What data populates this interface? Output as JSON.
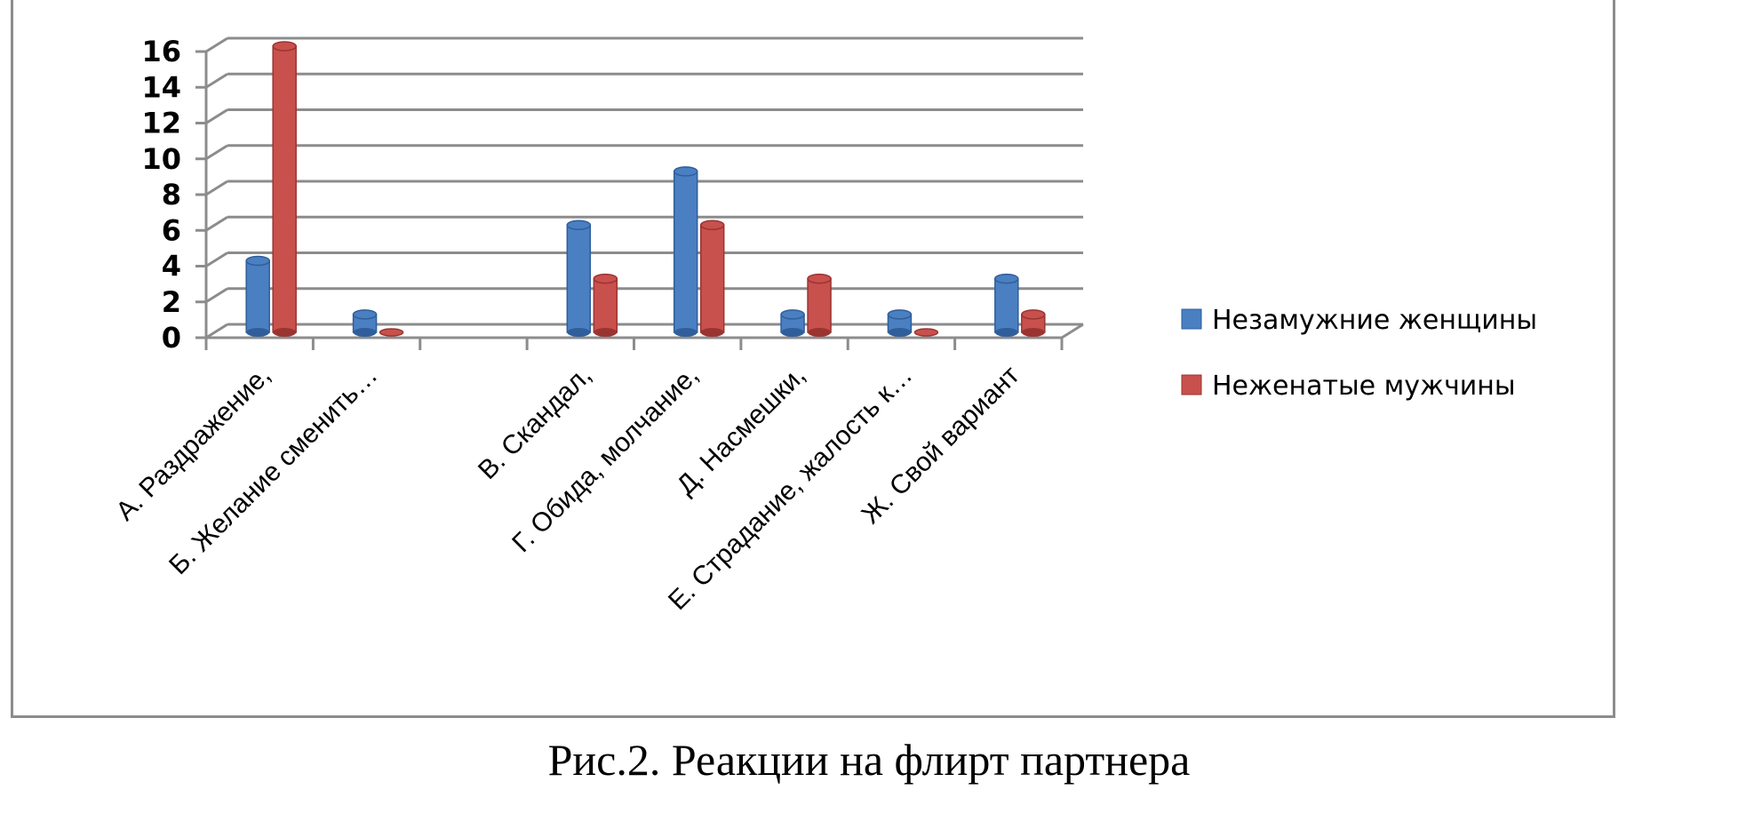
{
  "caption": "Рис.2. Реакции на флирт партнера",
  "colors": {
    "series1": "#4a7fc2",
    "series1_dark": "#2f5e9b",
    "series2": "#c8504d",
    "series2_dark": "#9a3431",
    "grid": "#8c8c8c"
  },
  "chart_data": {
    "type": "bar",
    "title": "",
    "xlabel": "",
    "ylabel": "",
    "ylim": [
      0,
      16
    ],
    "yticks": [
      0,
      2,
      4,
      6,
      8,
      10,
      12,
      14,
      16
    ],
    "grid": true,
    "legend_position": "right",
    "categories": [
      "А. Раздражение,",
      "Б. Желание сменить…",
      "",
      "В. Скандал,",
      "Г. Обида, молчание,",
      "Д. Насмешки,",
      "Е. Страдание, жалость к…",
      "Ж. Свой вариант"
    ],
    "series": [
      {
        "name": "Незамужние женщины",
        "values": [
          4,
          1,
          null,
          6,
          9,
          1,
          1,
          3
        ]
      },
      {
        "name": "Неженатые мужчины",
        "values": [
          16,
          0,
          null,
          3,
          6,
          3,
          0,
          1
        ]
      }
    ]
  }
}
